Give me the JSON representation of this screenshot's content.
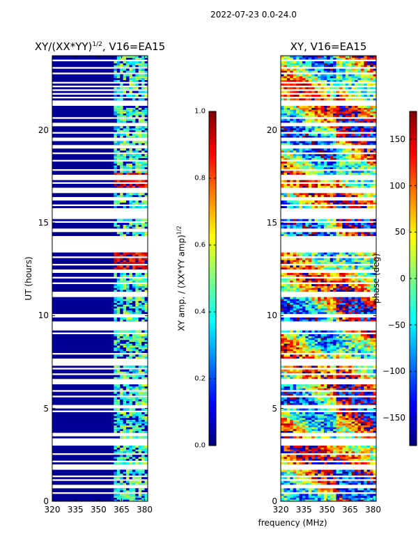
{
  "suptitle": "2022-07-23 0.0-24.0",
  "colors": {
    "axis": "#000000",
    "background": "#ffffff",
    "jet": [
      "#00007f",
      "#0000ff",
      "#007fff",
      "#00ffff",
      "#7fff7f",
      "#ffff00",
      "#ff7f00",
      "#ff0000",
      "#7f0000"
    ]
  },
  "chart_data": [
    {
      "type": "heatmap",
      "title": "XY/(XX*YY)",
      "title_exponent": "1/2",
      "title_suffix": ", V16=EA15",
      "xlabel": "frequency (MHz)",
      "ylabel": "UT (hours)",
      "xlim": [
        320,
        382
      ],
      "ylim": [
        0,
        24
      ],
      "xticks": [
        "320",
        "335",
        "350",
        "365",
        "380"
      ],
      "xtick_values": [
        320,
        335,
        350,
        365,
        380
      ],
      "yticks": [
        "0",
        "5",
        "10",
        "15",
        "20"
      ],
      "ytick_values": [
        0,
        5,
        10,
        15,
        20
      ],
      "colorbar": {
        "label": "XY amp. / (XX*YY amp)",
        "label_exponent": "1/2",
        "range": [
          0.0,
          1.0
        ],
        "ticks": [
          "0.0",
          "0.2",
          "0.4",
          "0.6",
          "0.8",
          "1.0"
        ],
        "tick_values": [
          0.0,
          0.2,
          0.4,
          0.6,
          0.8,
          1.0
        ]
      },
      "features": {
        "background_value": 0.02,
        "rfi_band_mhz": [
          360,
          380
        ],
        "high_amplitude_blocks_hours": [
          [
            12.4,
            13.4
          ],
          [
            16.9,
            17.6
          ]
        ],
        "high_amplitude_channels_mhz": [
          [
            363,
            367
          ],
          [
            368,
            372
          ],
          [
            373,
            377
          ],
          [
            378,
            381
          ]
        ]
      }
    },
    {
      "type": "heatmap",
      "title": "XY, V16=EA15",
      "xlabel": "frequency (MHz)",
      "ylabel": "",
      "xlim": [
        320,
        382
      ],
      "ylim": [
        0,
        24
      ],
      "xticks": [
        "320",
        "335",
        "350",
        "365",
        "380"
      ],
      "xtick_values": [
        320,
        335,
        350,
        365,
        380
      ],
      "yticks": [
        "0",
        "5",
        "10",
        "15",
        "20"
      ],
      "ytick_values": [
        0,
        5,
        10,
        15,
        20
      ],
      "colorbar": {
        "label": "phase (deg)",
        "range": [
          -180,
          180
        ],
        "ticks": [
          "−150",
          "−100",
          "−50",
          "0",
          "50",
          "100",
          "150"
        ],
        "tick_values": [
          -150,
          -100,
          -50,
          0,
          50,
          100,
          150
        ]
      }
    }
  ]
}
